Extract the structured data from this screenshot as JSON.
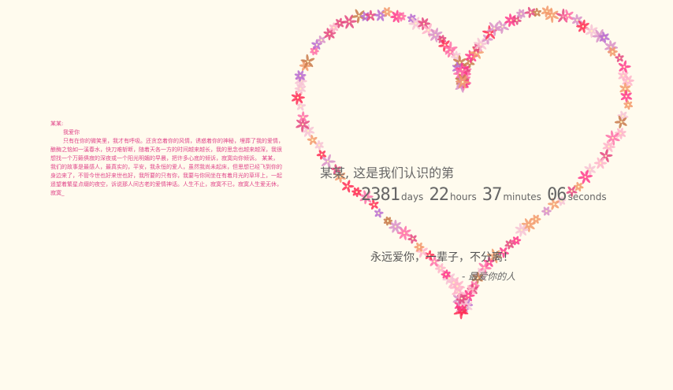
{
  "letter": {
    "greeting": "某某:",
    "love_you": "我爱你",
    "body": "只有在你的微笑里，我才有呼吸。还贪恋着你的风情，诱惑着你的神秘，埋葬了我的爱情，酿酶之恼如一溪春水，快刀难斩断，随着天各一方的时间越来越长，我的思念也越来越深，我很想找一个万籁俱寂的深夜或一个阳光明媚的早晨，把许多心底的倾诉，寂寞向你倾诉。 某某，我们的故事是最感人，最真实的，平安，我永恒的爱人，虽然我尚未起床，但思想已经飞到你的身边来了，不管今世也好来世也好，我所要的只有你，我要与你同坐在有着月光的草坪上，一起遥望着繁星点缀的夜空，诉说那人间古老的爱情神话。人生不止，寂寞不已，寂寞人生爱无休，寂寞_"
  },
  "main": {
    "title": "某某, 这是我们认识的第",
    "counter": {
      "days": "2381",
      "days_unit": "days",
      "hours": "22",
      "hours_unit": "hours",
      "minutes": "37",
      "minutes_unit": "minutes",
      "seconds": "06",
      "seconds_unit": "seconds"
    },
    "forever": "永远爱你，一辈子，不分离！",
    "signature": "- 最爱你的人"
  },
  "colors": {
    "background": "#fffbee",
    "letter_text": "#e0478a",
    "flowers": [
      "#ff3a8c",
      "#ff6fa8",
      "#e4477f",
      "#ffb3c9",
      "#f39a6b",
      "#d98fc7",
      "#ff2d55",
      "#c97a4a",
      "#f7c2d4",
      "#b86bd0"
    ]
  },
  "decoration": {
    "heart_icon": "flower-heart"
  }
}
